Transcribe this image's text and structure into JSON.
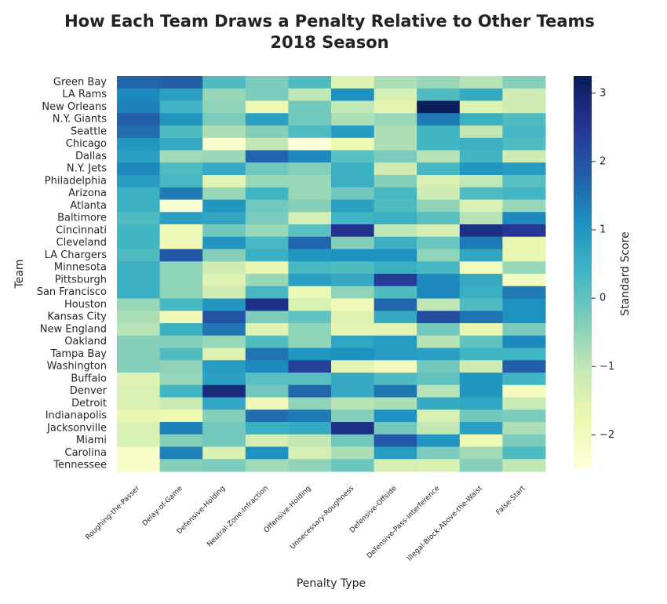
{
  "chart_data": {
    "type": "heatmap",
    "title": "How Each Team Draws a Penalty Relative to Other Teams",
    "subtitle": "2018 Season",
    "x_label": "Penalty Type",
    "y_label": "Team",
    "colorbar_label": "Standard Score",
    "colormap": [
      "#ffffd9",
      "#edf8b1",
      "#c7e9b4",
      "#7fcdbb",
      "#41b6c4",
      "#1d91c0",
      "#225ea8",
      "#253494",
      "#081d58"
    ],
    "clim": [
      -2.5,
      3.25
    ],
    "cticks": [
      {
        "value": -2,
        "label": "−2"
      },
      {
        "value": -1,
        "label": "−1"
      },
      0,
      1,
      2,
      3
    ],
    "columns": [
      "Roughing-the-Passer",
      "Delay-of-Game",
      "Defensive-Holding",
      "Neutral-Zone-Infraction",
      "Offensive-Holding",
      "Unnecessary-Roughness",
      "Defensive-Offside",
      "Defensive-Pass-Interference",
      "Illegal-Block-Above-the-Waist",
      "False-Start"
    ],
    "rows": [
      "Green Bay",
      "LA Rams",
      "New Orleans",
      "N.Y. Giants",
      "Seattle",
      "Chicago",
      "Dallas",
      "N.Y. Jets",
      "Philadelphia",
      "Arizona",
      "Atlanta",
      "Baltimore",
      "Cincinnati",
      "Cleveland",
      "LA Chargers",
      "Minnesota",
      "Pittsburgh",
      "San Francisco",
      "Houston",
      "Kansas City",
      "New England",
      "Oakland",
      "Tampa Bay",
      "Washington",
      "Buffalo",
      "Denver",
      "Detroit",
      "Indianapolis",
      "Jacksonville",
      "Miami",
      "Carolina",
      "Tennessee"
    ],
    "values": [
      [
        1.7,
        1.8,
        0.2,
        -0.3,
        0.2,
        -1.5,
        -0.8,
        -0.6,
        -0.9,
        -0.4
      ],
      [
        1.2,
        0.8,
        -0.6,
        -0.3,
        -1.0,
        1.1,
        -1.3,
        0.2,
        0.6,
        -1.2
      ],
      [
        1.3,
        0.4,
        -0.5,
        -1.8,
        -0.2,
        -1.0,
        -1.6,
        3.2,
        -1.5,
        -1.2
      ],
      [
        1.8,
        1.0,
        -0.3,
        0.8,
        -0.2,
        -0.8,
        -0.6,
        1.4,
        0.5,
        0.2
      ],
      [
        1.6,
        0.2,
        -0.8,
        -0.4,
        0.2,
        0.9,
        -0.8,
        0.4,
        -1.0,
        0.3
      ],
      [
        1.0,
        0.6,
        -2.3,
        -1.0,
        -2.5,
        -1.8,
        -0.8,
        0.4,
        0.5,
        0.2
      ],
      [
        0.8,
        -0.7,
        -0.6,
        1.7,
        1.2,
        0.1,
        -0.3,
        -0.9,
        0.4,
        -1.2
      ],
      [
        1.2,
        0.2,
        0.6,
        -0.2,
        -0.4,
        0.5,
        -1.2,
        0.3,
        1.0,
        0.9
      ],
      [
        0.9,
        0.3,
        -1.6,
        -0.6,
        -0.6,
        0.5,
        -0.4,
        -1.4,
        -1.0,
        0.1
      ],
      [
        0.5,
        1.4,
        -0.6,
        0.4,
        -0.6,
        -0.2,
        0.3,
        -1.2,
        0.2,
        0.4
      ],
      [
        0.5,
        -2.3,
        1.0,
        -0.2,
        -0.4,
        0.8,
        0.2,
        -0.5,
        -1.4,
        -0.6
      ],
      [
        0.2,
        0.8,
        0.7,
        -0.3,
        -1.3,
        0.4,
        0.5,
        0.1,
        -0.9,
        1.2
      ],
      [
        0.4,
        -1.9,
        -0.2,
        -0.6,
        0.1,
        2.6,
        -1.0,
        -1.3,
        2.7,
        2.5
      ],
      [
        0.4,
        -1.9,
        1.0,
        0.3,
        1.7,
        -0.4,
        0.5,
        -0.1,
        1.4,
        -1.7
      ],
      [
        0.2,
        1.9,
        -0.4,
        0.5,
        1.0,
        1.1,
        1.1,
        -0.5,
        0.7,
        -1.7
      ],
      [
        0.5,
        -0.5,
        -1.2,
        -1.7,
        0.3,
        0.2,
        0.5,
        0.3,
        -2.0,
        -0.6
      ],
      [
        0.5,
        -0.5,
        -1.5,
        -0.6,
        0.8,
        0.6,
        2.4,
        1.2,
        0.6,
        -2.0
      ],
      [
        0.5,
        -0.5,
        -1.2,
        0.3,
        -1.8,
        -0.5,
        0.2,
        1.2,
        0.5,
        1.4
      ],
      [
        -0.6,
        0.3,
        1.0,
        2.7,
        -1.4,
        -1.9,
        1.7,
        -1.0,
        0.2,
        1.1
      ],
      [
        -0.8,
        -1.9,
        2.0,
        -0.3,
        0.0,
        -1.5,
        0.6,
        2.1,
        1.5,
        1.1
      ],
      [
        -0.9,
        0.5,
        1.5,
        -1.5,
        -0.5,
        -1.6,
        -1.6,
        -0.2,
        -1.7,
        -0.3
      ],
      [
        -0.4,
        -0.4,
        -0.6,
        0.2,
        -0.5,
        0.7,
        0.9,
        -0.9,
        0.0,
        1.2
      ],
      [
        -0.4,
        0.2,
        -1.5,
        1.5,
        1.0,
        1.1,
        0.9,
        0.8,
        0.4,
        0.4
      ],
      [
        -0.4,
        -0.5,
        0.9,
        1.2,
        2.3,
        -1.6,
        -2.0,
        -0.2,
        -1.2,
        1.8
      ],
      [
        -1.5,
        -0.6,
        0.8,
        0.1,
        0.1,
        0.6,
        0.2,
        0.0,
        1.0,
        0.4
      ],
      [
        -1.4,
        0.4,
        2.8,
        -0.2,
        1.7,
        0.6,
        1.5,
        -0.9,
        1.0,
        -2.0
      ],
      [
        -1.4,
        -1.1,
        0.7,
        -1.9,
        -0.5,
        -0.9,
        -0.8,
        0.6,
        0.7,
        -1.1
      ],
      [
        -1.7,
        -1.8,
        -0.4,
        1.6,
        1.4,
        -0.4,
        1.1,
        -1.4,
        -0.2,
        -0.3
      ],
      [
        -1.4,
        1.3,
        -0.2,
        0.5,
        0.6,
        2.7,
        -0.2,
        -1.0,
        0.8,
        -0.8
      ],
      [
        -1.4,
        -0.4,
        -0.2,
        -1.3,
        -1.0,
        -0.2,
        1.9,
        1.0,
        -1.8,
        -0.3
      ],
      [
        -2.2,
        1.3,
        -1.4,
        1.1,
        -1.3,
        -0.8,
        0.9,
        -0.3,
        -0.7,
        0.2
      ],
      [
        -2.2,
        -0.4,
        -0.3,
        -0.7,
        -0.5,
        -0.1,
        -1.3,
        -1.4,
        -0.4,
        -1.0
      ]
    ]
  }
}
